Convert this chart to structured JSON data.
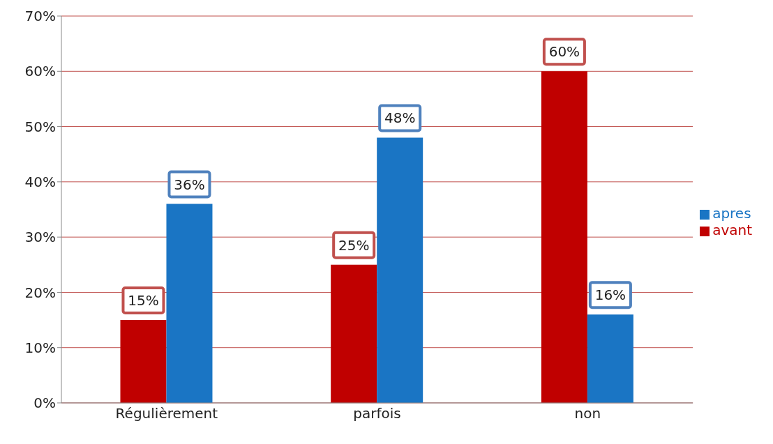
{
  "chart_data": {
    "type": "bar",
    "categories": [
      "Régulièrement",
      "parfois",
      "non"
    ],
    "series": [
      {
        "name": "avant",
        "color": "#c00000",
        "values": [
          15,
          25,
          60
        ],
        "value_labels": [
          "15%",
          "25%",
          "60%"
        ]
      },
      {
        "name": "apres",
        "color": "#1a75c4",
        "values": [
          36,
          48,
          16
        ],
        "value_labels": [
          "36%",
          "48%",
          "16%"
        ]
      }
    ],
    "ylim": [
      0,
      70
    ],
    "yticks": [
      {
        "value": 0,
        "label": "0%"
      },
      {
        "value": 10,
        "label": "10%"
      },
      {
        "value": 20,
        "label": "20%"
      },
      {
        "value": 30,
        "label": "30%"
      },
      {
        "value": 40,
        "label": "40%"
      },
      {
        "value": 50,
        "label": "50%"
      },
      {
        "value": 60,
        "label": "60%"
      },
      {
        "value": 70,
        "label": "70%"
      }
    ],
    "grid": "y",
    "legend": "right"
  }
}
